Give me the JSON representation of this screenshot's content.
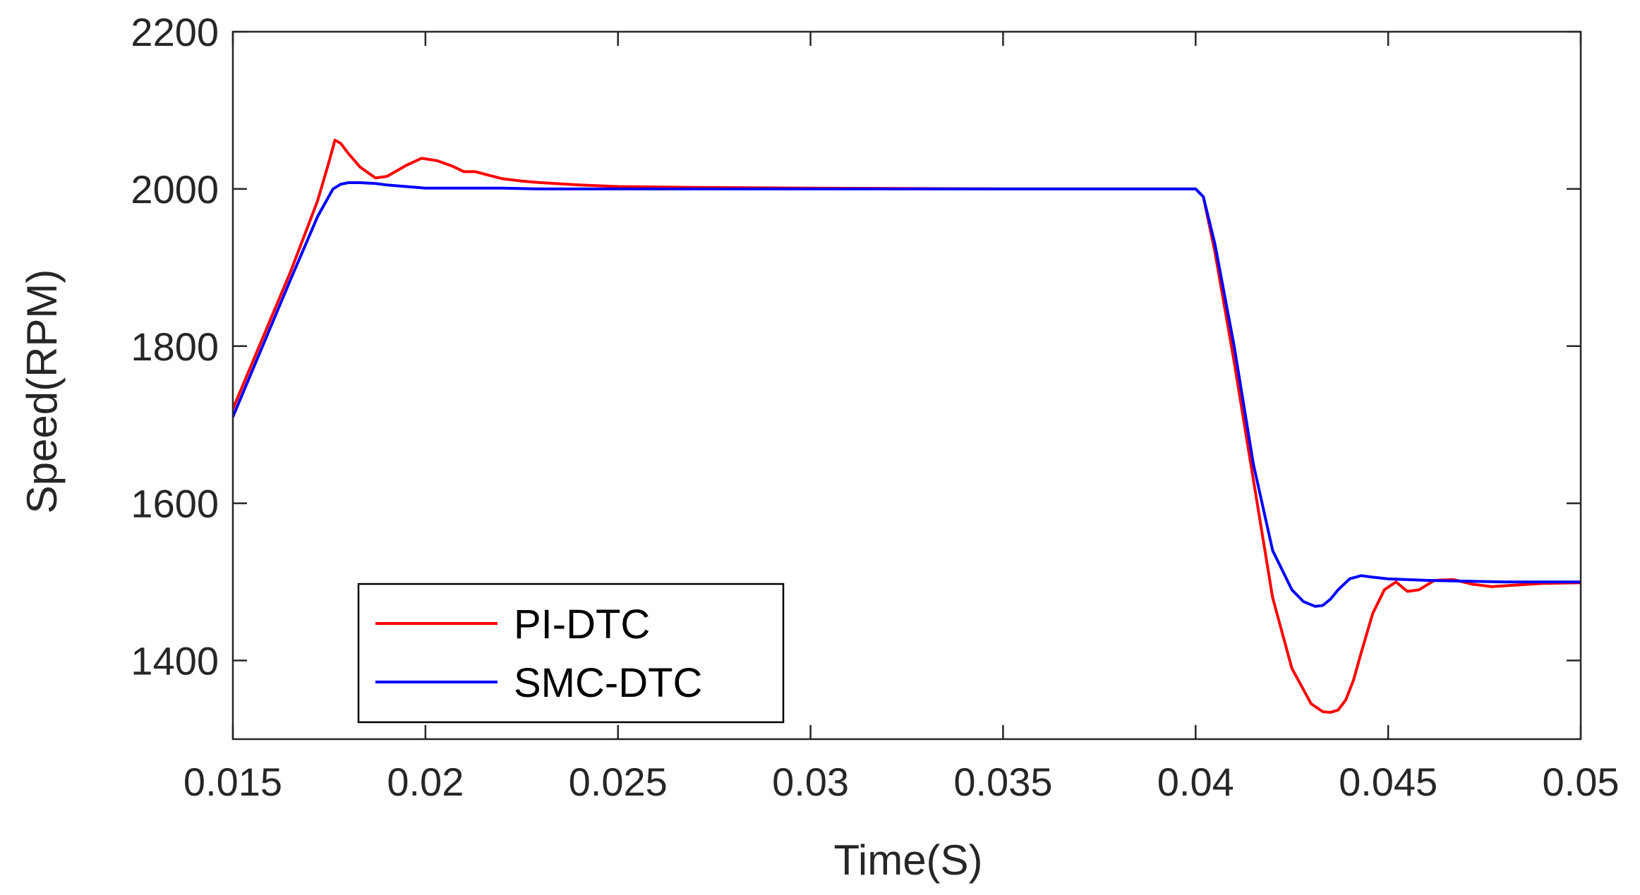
{
  "chart_data": {
    "type": "line",
    "title": "",
    "xlabel": "Time(S)",
    "ylabel": "Speed(RPM)",
    "xlim": [
      0.015,
      0.05
    ],
    "ylim": [
      1300,
      2200
    ],
    "xticks": [
      0.015,
      0.02,
      0.025,
      0.03,
      0.035,
      0.04,
      0.045,
      0.05
    ],
    "xtick_labels": [
      "0.015",
      "0.02",
      "0.025",
      "0.03",
      "0.035",
      "0.04",
      "0.045",
      "0.05"
    ],
    "yticks": [
      1400,
      1600,
      1800,
      2000,
      2200
    ],
    "ytick_labels": [
      "1400",
      "1600",
      "1800",
      "2000",
      "2200"
    ],
    "grid": false,
    "legend_position": "bottom-left",
    "series": [
      {
        "name": "PI-DTC",
        "color": "#ff0000",
        "x": [
          0.015,
          0.0165,
          0.0172,
          0.0175,
          0.01765,
          0.0178,
          0.018,
          0.0183,
          0.0187,
          0.019,
          0.0195,
          0.0199,
          0.0203,
          0.0207,
          0.021,
          0.0213,
          0.0216,
          0.022,
          0.0225,
          0.023,
          0.024,
          0.025,
          0.027,
          0.03,
          0.035,
          0.04,
          0.0402,
          0.0405,
          0.041,
          0.0415,
          0.042,
          0.0425,
          0.043,
          0.0433,
          0.0435,
          0.0437,
          0.0439,
          0.0441,
          0.0443,
          0.0446,
          0.0449,
          0.0452,
          0.0455,
          0.0458,
          0.0462,
          0.0467,
          0.0472,
          0.0477,
          0.0483,
          0.049,
          0.05
        ],
        "y": [
          1720,
          1895,
          1985,
          2035,
          2062,
          2058,
          2045,
          2028,
          2014,
          2016,
          2030,
          2039,
          2036,
          2029,
          2022,
          2022,
          2018,
          2013,
          2010,
          2008,
          2005,
          2003,
          2002,
          2001,
          2000,
          2000,
          1990,
          1920,
          1780,
          1630,
          1480,
          1390,
          1345,
          1335,
          1334,
          1337,
          1350,
          1375,
          1410,
          1460,
          1490,
          1500,
          1488,
          1490,
          1502,
          1503,
          1497,
          1494,
          1496,
          1498,
          1499
        ]
      },
      {
        "name": "SMC-DTC",
        "color": "#0000ff",
        "x": [
          0.015,
          0.0165,
          0.0172,
          0.0176,
          0.0178,
          0.018,
          0.0183,
          0.0187,
          0.019,
          0.0195,
          0.02,
          0.021,
          0.022,
          0.023,
          0.025,
          0.027,
          0.03,
          0.035,
          0.04,
          0.0402,
          0.0405,
          0.041,
          0.0415,
          0.042,
          0.0425,
          0.0428,
          0.0431,
          0.0433,
          0.0435,
          0.0437,
          0.044,
          0.0443,
          0.0446,
          0.045,
          0.046,
          0.047,
          0.048,
          0.049,
          0.05
        ],
        "y": [
          1710,
          1885,
          1965,
          2000,
          2006,
          2008,
          2008,
          2007,
          2005,
          2003,
          2001,
          2001,
          2001,
          2000,
          2000,
          2000,
          2000,
          2000,
          2000,
          1990,
          1930,
          1800,
          1650,
          1540,
          1490,
          1475,
          1469,
          1470,
          1478,
          1490,
          1504,
          1508,
          1506,
          1504,
          1502,
          1501,
          1500,
          1500,
          1500
        ]
      }
    ]
  }
}
